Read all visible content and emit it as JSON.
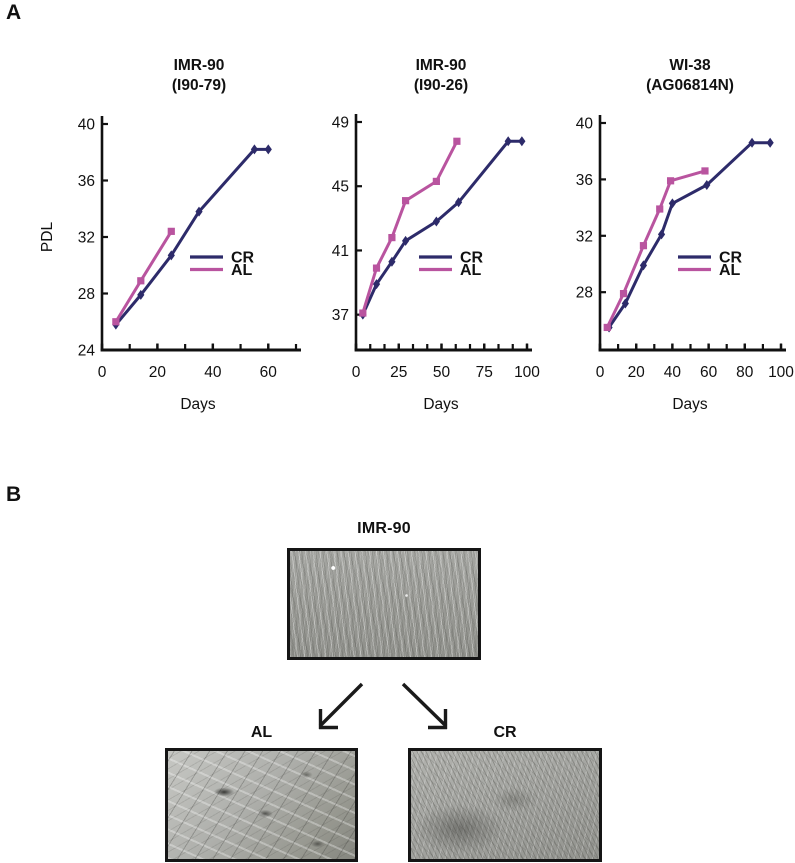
{
  "figure": {
    "panel_a_label": "A",
    "panel_b_label": "B"
  },
  "colors": {
    "cr": "#2d2b6a",
    "al": "#b9549f",
    "axis": "#111111"
  },
  "chart_data": [
    {
      "type": "line",
      "title": [
        "IMR-90",
        "(I90-79)"
      ],
      "xlabel": "Days",
      "ylabel": "PDL",
      "y_ticks": [
        24,
        28,
        32,
        36,
        40
      ],
      "x_ticks": [
        0,
        20,
        40,
        60
      ],
      "x_minor_step": 10,
      "xlim": [
        0,
        70
      ],
      "ylim": [
        24,
        40
      ],
      "legend_position": "inside-right",
      "series": [
        {
          "name": "CR",
          "marker": "diamond",
          "color_key": "cr",
          "points": [
            [
              5,
              25.8
            ],
            [
              14,
              27.9
            ],
            [
              25,
              30.7
            ],
            [
              35,
              33.8
            ],
            [
              55,
              38.2
            ],
            [
              60,
              38.2
            ]
          ]
        },
        {
          "name": "AL",
          "marker": "square",
          "color_key": "al",
          "points": [
            [
              5,
              26.0
            ],
            [
              14,
              28.9
            ],
            [
              25,
              32.4
            ]
          ]
        }
      ]
    },
    {
      "type": "line",
      "title": [
        "IMR-90",
        "(I90-26)"
      ],
      "xlabel": "Days",
      "ylabel": "",
      "y_ticks": [
        37,
        41,
        45,
        49
      ],
      "x_ticks": [
        0,
        25,
        50,
        75,
        100
      ],
      "x_minor_step": 8.3333,
      "xlim": [
        0,
        100
      ],
      "ylim": [
        34.8,
        49
      ],
      "legend_position": "inside-right",
      "series": [
        {
          "name": "CR",
          "marker": "diamond",
          "color_key": "cr",
          "points": [
            [
              4,
              37.0
            ],
            [
              12,
              38.9
            ],
            [
              21,
              40.3
            ],
            [
              29,
              41.6
            ],
            [
              47,
              42.8
            ],
            [
              60,
              44.0
            ],
            [
              89,
              47.8
            ],
            [
              97,
              47.8
            ]
          ]
        },
        {
          "name": "AL",
          "marker": "square",
          "color_key": "al",
          "points": [
            [
              4,
              37.1
            ],
            [
              12,
              39.9
            ],
            [
              21,
              41.8
            ],
            [
              29,
              44.1
            ],
            [
              47,
              45.3
            ],
            [
              59,
              47.8
            ]
          ]
        }
      ]
    },
    {
      "type": "line",
      "title": [
        "WI-38",
        "(AG06814N)"
      ],
      "xlabel": "Days",
      "ylabel": "",
      "y_ticks": [
        28,
        32,
        36,
        40
      ],
      "x_ticks": [
        0,
        20,
        40,
        60,
        80,
        100
      ],
      "x_minor_step": 10,
      "xlim": [
        0,
        100
      ],
      "ylim": [
        23.9,
        40
      ],
      "legend_position": "inside-right",
      "series": [
        {
          "name": "CR",
          "marker": "diamond",
          "color_key": "cr",
          "points": [
            [
              5,
              25.5
            ],
            [
              14,
              27.2
            ],
            [
              24,
              29.9
            ],
            [
              34,
              32.1
            ],
            [
              40,
              34.3
            ],
            [
              59,
              35.6
            ],
            [
              84,
              38.6
            ],
            [
              94,
              38.6
            ]
          ]
        },
        {
          "name": "AL",
          "marker": "square",
          "color_key": "al",
          "points": [
            [
              4,
              25.5
            ],
            [
              13,
              27.9
            ],
            [
              24,
              31.3
            ],
            [
              33,
              33.9
            ],
            [
              39,
              35.9
            ],
            [
              58,
              36.6
            ]
          ]
        }
      ]
    }
  ],
  "panel_b": {
    "parent_title": "IMR-90",
    "branches": [
      {
        "label": "AL"
      },
      {
        "label": "CR"
      }
    ]
  }
}
